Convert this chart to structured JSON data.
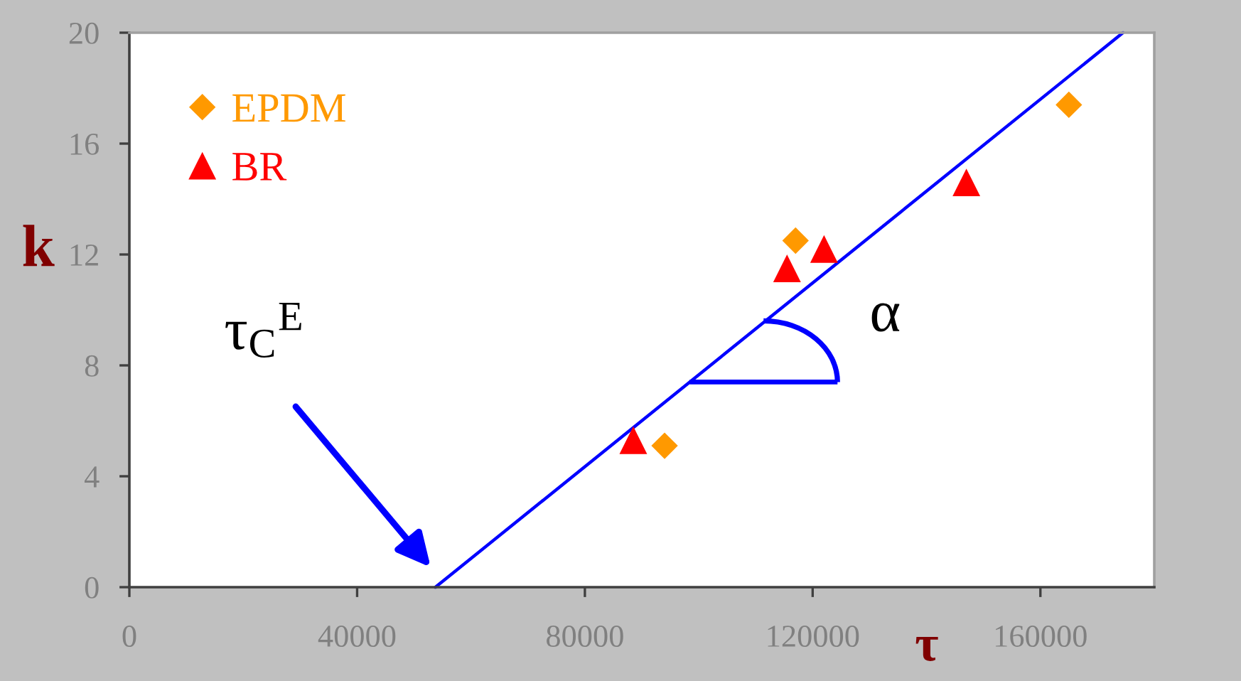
{
  "chart_data": {
    "type": "scatter",
    "xlabel": "τ",
    "ylabel": "k",
    "xlim": [
      0,
      180000
    ],
    "ylim": [
      0,
      20
    ],
    "xticks": [
      0,
      40000,
      80000,
      120000,
      160000
    ],
    "yticks": [
      0,
      4,
      8,
      12,
      16,
      20
    ],
    "grid": false,
    "legend": "top left",
    "series": [
      {
        "name": "EPDM",
        "marker": "diamond",
        "color": "#ff9900",
        "x": [
          94000,
          117000,
          165000
        ],
        "values": [
          5.1,
          12.5,
          17.4
        ]
      },
      {
        "name": "BR",
        "marker": "triangle",
        "color": "#ff0000",
        "x": [
          88500,
          115500,
          122000,
          147000
        ],
        "values": [
          5.3,
          11.5,
          12.2,
          14.6
        ]
      },
      {
        "type": "line",
        "marker": "none",
        "color": "#0000ff",
        "x": [
          53750,
          174500
        ],
        "values": [
          0,
          20
        ]
      }
    ],
    "annotations": [
      "τ$_{C}$$^{E}$",
      {
        "text": "α",
        "x": 98400,
        "y": 7.4
      }
    ]
  }
}
